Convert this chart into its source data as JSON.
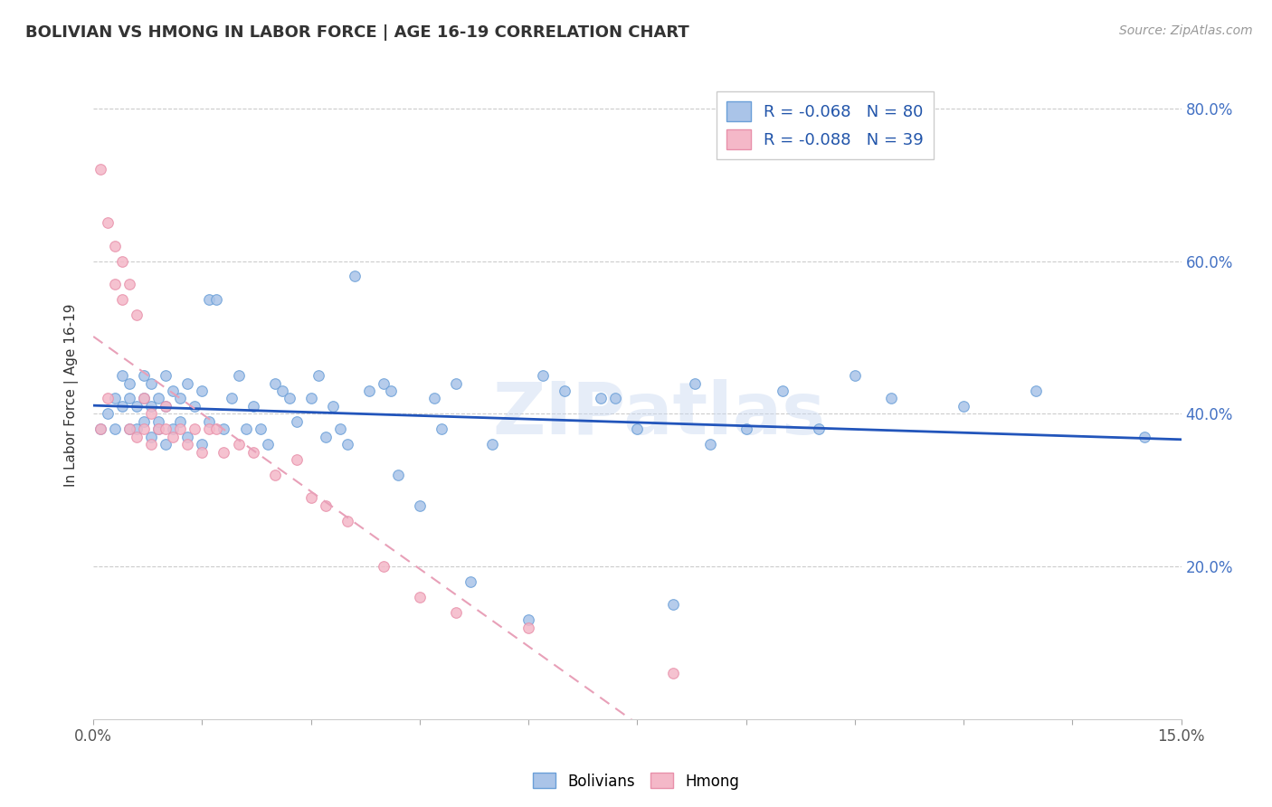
{
  "title": "BOLIVIAN VS HMONG IN LABOR FORCE | AGE 16-19 CORRELATION CHART",
  "source_text": "Source: ZipAtlas.com",
  "ylabel": "In Labor Force | Age 16-19",
  "xlim": [
    0.0,
    0.15
  ],
  "ylim": [
    0.0,
    0.85
  ],
  "bolivian_color": "#aac4e8",
  "bolivian_edge_color": "#6a9fd8",
  "hmong_color": "#f4b8c8",
  "hmong_edge_color": "#e890aa",
  "bolivian_line_color": "#2255bb",
  "hmong_line_color": "#e8a0b8",
  "grid_color": "#cccccc",
  "right_tick_color": "#4472c4",
  "bolivian_x": [
    0.001,
    0.002,
    0.003,
    0.003,
    0.004,
    0.004,
    0.005,
    0.005,
    0.005,
    0.006,
    0.006,
    0.007,
    0.007,
    0.007,
    0.008,
    0.008,
    0.008,
    0.009,
    0.009,
    0.009,
    0.01,
    0.01,
    0.01,
    0.011,
    0.011,
    0.012,
    0.012,
    0.013,
    0.013,
    0.014,
    0.015,
    0.015,
    0.016,
    0.016,
    0.017,
    0.018,
    0.019,
    0.02,
    0.021,
    0.022,
    0.023,
    0.024,
    0.025,
    0.026,
    0.027,
    0.028,
    0.03,
    0.031,
    0.032,
    0.033,
    0.034,
    0.035,
    0.036,
    0.038,
    0.04,
    0.041,
    0.042,
    0.045,
    0.047,
    0.048,
    0.05,
    0.052,
    0.055,
    0.06,
    0.062,
    0.065,
    0.07,
    0.072,
    0.075,
    0.08,
    0.083,
    0.085,
    0.09,
    0.095,
    0.1,
    0.105,
    0.11,
    0.12,
    0.13,
    0.145
  ],
  "bolivian_y": [
    0.38,
    0.4,
    0.42,
    0.38,
    0.41,
    0.45,
    0.38,
    0.42,
    0.44,
    0.38,
    0.41,
    0.39,
    0.42,
    0.45,
    0.37,
    0.41,
    0.44,
    0.38,
    0.42,
    0.39,
    0.36,
    0.41,
    0.45,
    0.38,
    0.43,
    0.39,
    0.42,
    0.37,
    0.44,
    0.41,
    0.36,
    0.43,
    0.55,
    0.39,
    0.55,
    0.38,
    0.42,
    0.45,
    0.38,
    0.41,
    0.38,
    0.36,
    0.44,
    0.43,
    0.42,
    0.39,
    0.42,
    0.45,
    0.37,
    0.41,
    0.38,
    0.36,
    0.58,
    0.43,
    0.44,
    0.43,
    0.32,
    0.28,
    0.42,
    0.38,
    0.44,
    0.18,
    0.36,
    0.13,
    0.45,
    0.43,
    0.42,
    0.42,
    0.38,
    0.15,
    0.44,
    0.36,
    0.38,
    0.43,
    0.38,
    0.45,
    0.42,
    0.41,
    0.43,
    0.37
  ],
  "hmong_x": [
    0.001,
    0.001,
    0.002,
    0.002,
    0.003,
    0.003,
    0.004,
    0.004,
    0.005,
    0.005,
    0.006,
    0.006,
    0.007,
    0.007,
    0.008,
    0.008,
    0.009,
    0.01,
    0.01,
    0.011,
    0.012,
    0.013,
    0.014,
    0.015,
    0.016,
    0.017,
    0.018,
    0.02,
    0.022,
    0.025,
    0.028,
    0.03,
    0.032,
    0.035,
    0.04,
    0.045,
    0.05,
    0.06,
    0.08
  ],
  "hmong_y": [
    0.72,
    0.38,
    0.65,
    0.42,
    0.62,
    0.57,
    0.6,
    0.55,
    0.57,
    0.38,
    0.37,
    0.53,
    0.38,
    0.42,
    0.36,
    0.4,
    0.38,
    0.38,
    0.41,
    0.37,
    0.38,
    0.36,
    0.38,
    0.35,
    0.38,
    0.38,
    0.35,
    0.36,
    0.35,
    0.32,
    0.34,
    0.29,
    0.28,
    0.26,
    0.2,
    0.16,
    0.14,
    0.12,
    0.06
  ]
}
